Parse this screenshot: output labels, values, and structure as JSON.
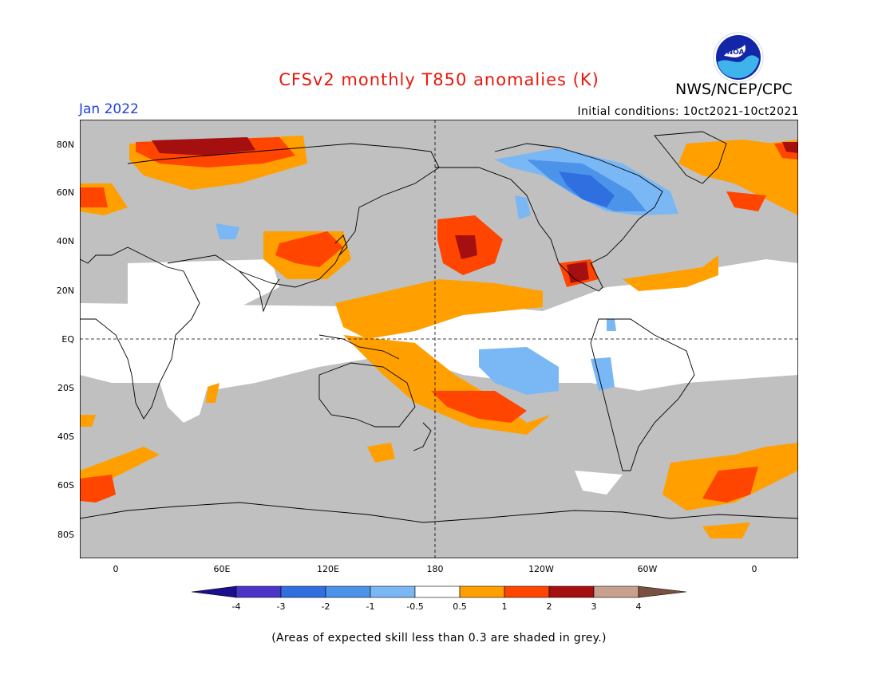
{
  "header": {
    "title": "CFSv2 monthly T850 anomalies (K)",
    "agency": "NWS/NCEP/CPC",
    "logo_text": "NOAA",
    "month": "Jan 2022",
    "initial_conditions": "Initial conditions: 10ct2021-10ct2021"
  },
  "map": {
    "lat_labels": [
      "80N",
      "60N",
      "40N",
      "20N",
      "EQ",
      "20S",
      "40S",
      "60S",
      "80S"
    ],
    "lon_labels": [
      "0",
      "60E",
      "120E",
      "180",
      "120W",
      "60W",
      "0"
    ],
    "background_color": "#c0c0c0"
  },
  "colorbar": {
    "ticks": [
      "-4",
      "-3",
      "-2",
      "-1",
      "-0.5",
      "0.5",
      "1",
      "2",
      "3",
      "4"
    ],
    "colors": [
      "#1a0f8c",
      "#4a35c8",
      "#2f6fe0",
      "#4c93ea",
      "#7ab7f5",
      "#ffffff",
      "#ff9f00",
      "#ff4500",
      "#a50f0f",
      "#c8a08f",
      "#7a5040"
    ]
  },
  "footnote": "(Areas of expected skill less than 0.3 are shaded in grey.)"
}
